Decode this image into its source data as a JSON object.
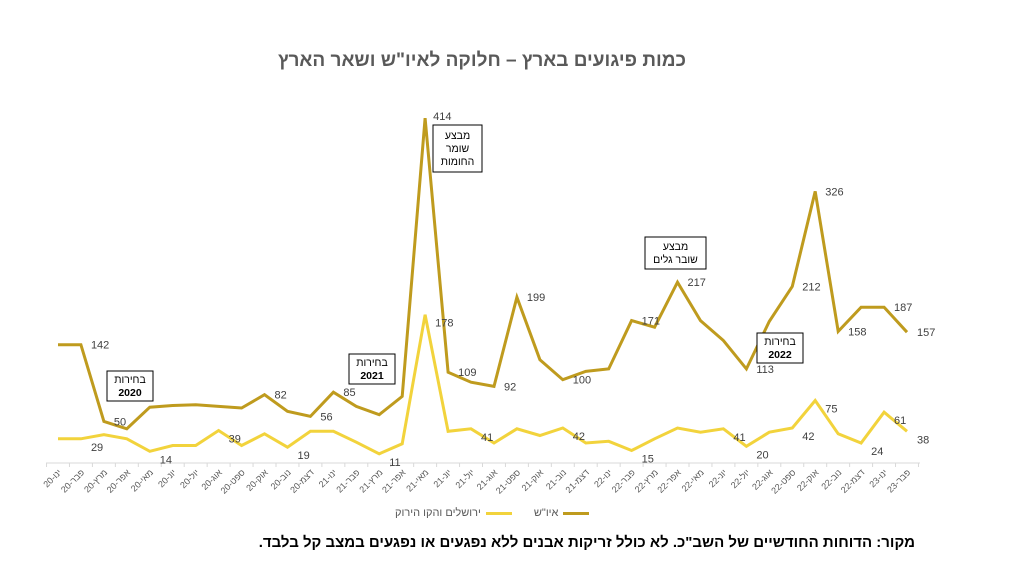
{
  "title": "כמות פיגועים בארץ – חלוקה לאיו\"ש ושאר הארץ",
  "source_note": "מקור: הדוחות החודשיים של השב\"כ. לא כולל זריקות אבנים ללא נפגעים או נפגעים במצב קל בלבד.",
  "legend": {
    "ayosh_label": "איו\"ש",
    "jerusalem_label": "ירושלים והקו הירוק"
  },
  "colors": {
    "ayosh": "#BF9B1E",
    "jerusalem": "#F2D33C",
    "axis": "#D9D9D9",
    "label_text": "#404040"
  },
  "annotations": [
    {
      "text_line1": "בחירות",
      "text_line2": "2020",
      "index": 3
    },
    {
      "text_line1": "בחירות",
      "text_line2": "2021",
      "index": 14
    },
    {
      "text_line1": "מבצע",
      "text_line2": "שומר",
      "text_line3": "החומות",
      "index": 17
    },
    {
      "text_line1": "מבצע",
      "text_line2": "שובר גלים",
      "index": 27
    },
    {
      "text_line1": "בחירות",
      "text_line2": "2022",
      "index": 31
    }
  ],
  "chart_data": {
    "type": "line",
    "title": "כמות פיגועים בארץ – חלוקה לאיו\"ש ושאר הארץ",
    "xlabel": "",
    "ylabel": "",
    "ylim": [
      0,
      420
    ],
    "grid": false,
    "legend_position": "bottom",
    "categories": [
      "ינו-20",
      "פבר-20",
      "מרץ-20",
      "אפר-20",
      "מאי-20",
      "יונ-20",
      "יול-20",
      "אוג-20",
      "ספט-20",
      "אוק-20",
      "נוב-20",
      "דצמ-20",
      "ינו-21",
      "פבר-21",
      "מרץ-21",
      "אפר-21",
      "מאי-21",
      "יונ-21",
      "יול-21",
      "אוג-21",
      "ספט-21",
      "אוק-21",
      "נוב-21",
      "דצמ-21",
      "ינו-22",
      "פבר-22",
      "מרץ-22",
      "אפר-22",
      "מאי-22",
      "יונ-22",
      "יול-22",
      "אוג-22",
      "ספט-22",
      "אוק-22",
      "נוב-22",
      "דצמ-22",
      "ינו-23",
      "פבר-23"
    ],
    "series": [
      {
        "name": "איו\"ש",
        "values": [
          142,
          142,
          50,
          41,
          67,
          69,
          70,
          68,
          66,
          82,
          62,
          56,
          85,
          68,
          58,
          80,
          414,
          109,
          97,
          92,
          199,
          124,
          100,
          110,
          113,
          171,
          163,
          217,
          171,
          147,
          113,
          170,
          212,
          326,
          158,
          187,
          187,
          157
        ],
        "labeled_indices": [
          1,
          2,
          9,
          11,
          12,
          16,
          17,
          19,
          20,
          22,
          25,
          27,
          30,
          32,
          33,
          34,
          36,
          37
        ]
      },
      {
        "name": "ירושלים והקו הירוק",
        "values": [
          29,
          29,
          34,
          29,
          14,
          21,
          21,
          39,
          21,
          35,
          19,
          38,
          38,
          25,
          11,
          23,
          178,
          38,
          41,
          24,
          41,
          33,
          42,
          24,
          26,
          15,
          29,
          42,
          37,
          41,
          20,
          37,
          42,
          75,
          35,
          24,
          61,
          38
        ],
        "labeled_indices": [
          1,
          4,
          7,
          10,
          14,
          16,
          18,
          22,
          25,
          29,
          30,
          32,
          33,
          35,
          36,
          37
        ]
      }
    ],
    "annotations": [
      "בחירות 2020",
      "בחירות 2021",
      "מבצע שומר החומות",
      "מבצע שובר גלים",
      "בחירות 2022"
    ]
  }
}
